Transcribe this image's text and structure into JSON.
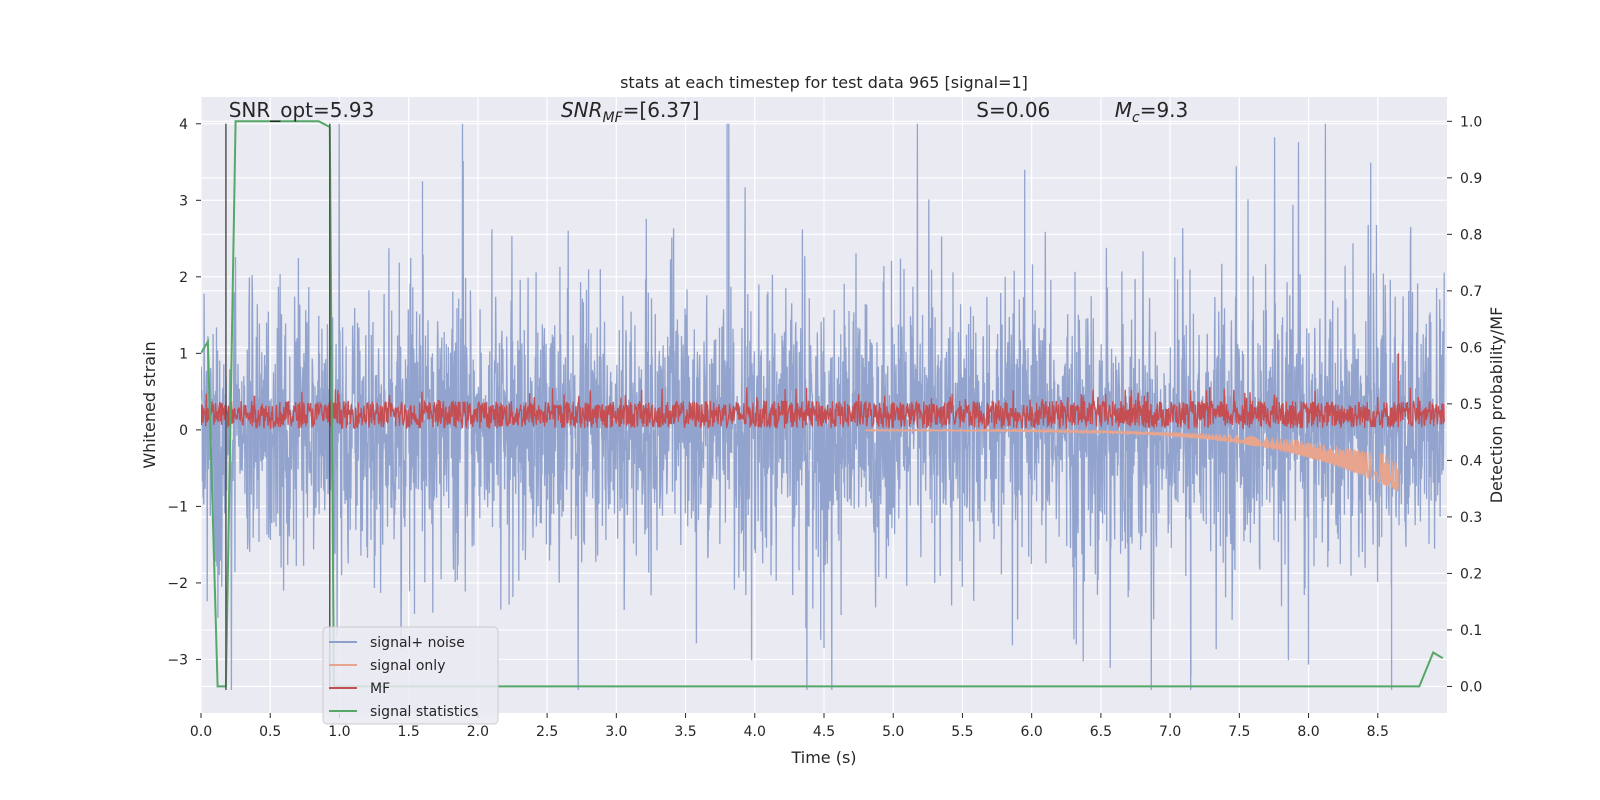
{
  "chart_data": {
    "type": "line",
    "title": "stats at each timestep for test data 965 [signal=1]",
    "xlabel": "Time (s)",
    "ylabel": "Whitened strain",
    "ylabel_right": "Detection probability/MF",
    "xlim": [
      0,
      9.0
    ],
    "ylim": [
      -3.7,
      4.35
    ],
    "ylim_right": [
      -0.047,
      1.043
    ],
    "x_ticks": [
      0.0,
      0.5,
      1.0,
      1.5,
      2.0,
      2.5,
      3.0,
      3.5,
      4.0,
      4.5,
      5.0,
      5.5,
      6.0,
      6.5,
      7.0,
      7.5,
      8.0,
      8.5
    ],
    "x_tick_labels": [
      "0.0",
      "0.5",
      "1.0",
      "1.5",
      "2.0",
      "2.5",
      "3.0",
      "3.5",
      "4.0",
      "4.5",
      "5.0",
      "5.5",
      "6.0",
      "6.5",
      "7.0",
      "7.5",
      "8.0",
      "8.5"
    ],
    "y_ticks": [
      -3,
      -2,
      -1,
      0,
      1,
      2,
      3,
      4
    ],
    "y_tick_labels": [
      "−3",
      "−2",
      "−1",
      "0",
      "1",
      "2",
      "3",
      "4"
    ],
    "y_right_ticks": [
      0.0,
      0.1,
      0.2,
      0.3,
      0.4,
      0.5,
      0.6,
      0.7,
      0.8,
      0.9,
      1.0
    ],
    "y_right_tick_labels": [
      "0.0",
      "0.1",
      "0.2",
      "0.3",
      "0.4",
      "0.5",
      "0.6",
      "0.7",
      "0.8",
      "0.9",
      "1.0"
    ],
    "grid": true,
    "annotations": [
      {
        "text": "SNR_opt=5.93",
        "x": 0.2,
        "y": 4.1
      },
      {
        "text": "SNR_MF=[6.37]",
        "x": 2.6,
        "y": 4.1
      },
      {
        "text": "S=0.06",
        "x": 5.6,
        "y": 4.1
      },
      {
        "text": "M_c=9.3",
        "x": 6.6,
        "y": 4.1
      }
    ],
    "vertical_lines": [
      {
        "x": 0.18,
        "y_range": [
          -3.4,
          4.0
        ],
        "color": "#555555"
      },
      {
        "x": 0.93,
        "y_range": [
          -3.4,
          4.0
        ],
        "color": "#555555"
      }
    ],
    "legend_position": "lower-left",
    "series": [
      {
        "name": "signal+ noise",
        "color": "#8da0cb",
        "kind": "noise",
        "axis": "left",
        "envelope_min": -3.4,
        "envelope_max": 4.0,
        "typical_amplitude": 1.1,
        "notable_extremes": [
          {
            "x": 3.8,
            "y": 4.0
          },
          {
            "x": 5.95,
            "y": 3.4
          },
          {
            "x": 8.6,
            "y": -3.4
          },
          {
            "x": 7.15,
            "y": -3.2
          },
          {
            "x": 1.6,
            "y": 3.25
          },
          {
            "x": 4.5,
            "y": -2.85
          }
        ]
      },
      {
        "name": "signal only",
        "color": "#e8a48c",
        "kind": "chirp",
        "axis": "left",
        "start_x": 4.8,
        "end_x": 8.65,
        "start_amplitude": 0.02,
        "end_amplitude": 0.9
      },
      {
        "name": "MF",
        "color": "#c44e52",
        "kind": "band",
        "axis": "left",
        "center": 0.2,
        "half_width": 0.18,
        "peak": {
          "x": 8.65,
          "y": 1.0
        }
      },
      {
        "name": "signal statistics",
        "color": "#55a868",
        "kind": "line",
        "axis": "right",
        "x": [
          0.0,
          0.05,
          0.12,
          0.18,
          0.25,
          0.85,
          0.93,
          0.96,
          1.0,
          8.8,
          8.9,
          8.97
        ],
        "y": [
          0.59,
          0.61,
          0.0,
          0.0,
          1.0,
          1.0,
          0.99,
          0.0,
          0.0,
          0.0,
          0.06,
          0.05
        ]
      }
    ]
  }
}
